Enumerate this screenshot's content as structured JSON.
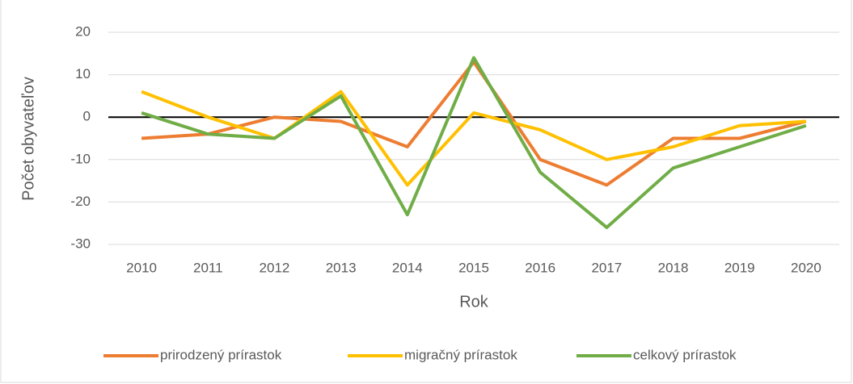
{
  "chart_data": {
    "type": "line",
    "x_label": "Rok",
    "y_label": "Počet obyvateľov",
    "categories": [
      "2010",
      "2011",
      "2012",
      "2013",
      "2014",
      "2015",
      "2016",
      "2017",
      "2018",
      "2019",
      "2020"
    ],
    "series": [
      {
        "name": "prirodzený prírastok",
        "color": "#ED7D31",
        "values": [
          -5,
          -4,
          0,
          -1,
          -7,
          13,
          -10,
          -16,
          -5,
          -5,
          -1
        ]
      },
      {
        "name": "migračný prírastok",
        "color": "#FFC000",
        "values": [
          6,
          0,
          -5,
          6,
          -16,
          1,
          -3,
          -10,
          -7,
          -2,
          -1
        ]
      },
      {
        "name": "celkový prírastok",
        "color": "#70AD47",
        "values": [
          1,
          -4,
          -5,
          5,
          -23,
          14,
          -13,
          -26,
          -12,
          -7,
          -2
        ]
      }
    ],
    "ylim": [
      -30,
      20
    ],
    "yticks": [
      -30,
      -20,
      -10,
      0,
      10,
      20
    ],
    "grid": true,
    "legend": "bottom"
  }
}
